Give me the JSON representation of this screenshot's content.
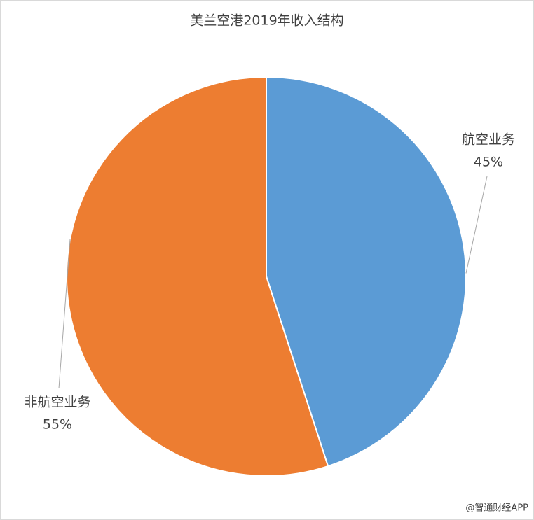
{
  "chart_data": {
    "type": "pie",
    "title": "美兰空港2019年收入结构",
    "categories": [
      "航空业务",
      "非航空业务"
    ],
    "values": [
      45,
      55
    ],
    "value_labels": [
      "45%",
      "55%"
    ],
    "colors": [
      "#5b9bd5",
      "#ed7d31"
    ]
  },
  "watermark": "@智通财经APP"
}
